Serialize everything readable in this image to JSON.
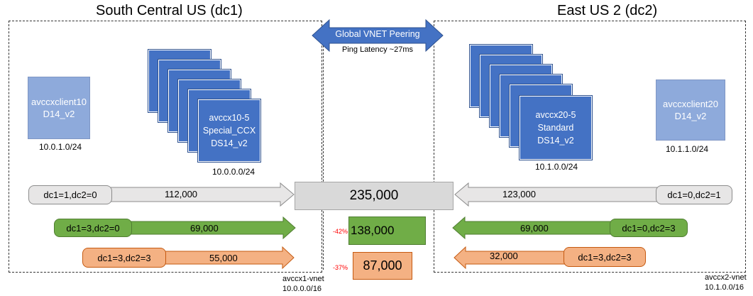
{
  "regions": {
    "dc1": {
      "title": "South Central US (dc1)",
      "vnet_name": "avccx1-vnet",
      "vnet_cidr": "10.0.0.0/16",
      "client": {
        "name": "avccxclient10",
        "size": "D14_v2",
        "subnet": "10.0.1.0/24"
      },
      "cluster": {
        "name": "avccx10-5",
        "type": "Special_CCX",
        "size": "DS14_v2",
        "subnet": "10.0.0.0/24"
      }
    },
    "dc2": {
      "title": "East US 2 (dc2)",
      "vnet_name": "avccx2-vnet",
      "vnet_cidr": "10.1.0.0/16",
      "client": {
        "name": "avccxclient20",
        "size": "D14_v2",
        "subnet": "10.1.1.0/24"
      },
      "cluster": {
        "name": "avccx20-5",
        "type": "Standard",
        "size": "DS14_v2",
        "subnet": "10.1.0.0/24"
      }
    }
  },
  "peering": {
    "label": "Global VNET Peering",
    "latency": "Ping Latency ~27ms"
  },
  "rows": [
    {
      "left_config": "dc1=1,dc2=0",
      "left_value": "112,000",
      "total": "235,000",
      "change": "",
      "right_value": "123,000",
      "right_config": "dc1=0,dc2=1"
    },
    {
      "left_config": "dc1=3,dc2=0",
      "left_value": "69,000",
      "total": "138,000",
      "change": "-42%",
      "right_value": "69,000",
      "right_config": "dc1=0,dc2=3"
    },
    {
      "left_config": "dc1=3,dc2=3",
      "left_value": "55,000",
      "total": "87,000",
      "change": "-37%",
      "right_value": "32,000",
      "right_config": "dc1=3,dc2=3"
    }
  ],
  "colors": {
    "node": "#4472c4",
    "client": "#8eaadb",
    "peering": "#4472c4",
    "gray": "#e7e6e6",
    "green": "#70ad47",
    "orange": "#f4b183"
  }
}
